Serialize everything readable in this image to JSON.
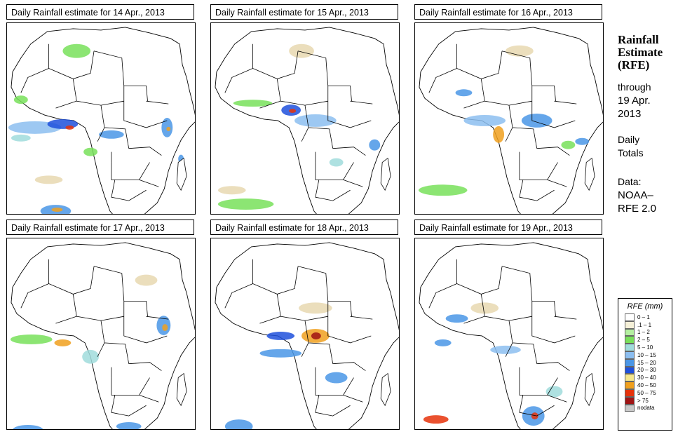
{
  "panels": [
    {
      "title": "Daily Rainfall estimate for  14 Apr., 2013"
    },
    {
      "title": "Daily Rainfall estimate for  15 Apr., 2013"
    },
    {
      "title": "Daily Rainfall estimate for  16 Apr., 2013"
    },
    {
      "title": "Daily Rainfall estimate for  17 Apr., 2013"
    },
    {
      "title": "Daily Rainfall estimate for  18 Apr., 2013"
    },
    {
      "title": "Daily Rainfall estimate for  19 Apr., 2013"
    }
  ],
  "sidebar": {
    "title_line1": "Rainfall",
    "title_line2": "Estimate",
    "title_line3": "(RFE)",
    "through": "through",
    "date_line1": "19 Apr.",
    "date_line2": "2013",
    "totals_line1": "Daily",
    "totals_line2": "Totals",
    "data_label": "Data:",
    "source_line1": "NOAA–",
    "source_line2": "RFE 2.0"
  },
  "legend": {
    "title": "RFE (mm)",
    "items": [
      {
        "label": "0 – 1",
        "color": "#ffffff"
      },
      {
        "label": ".1 – 1",
        "color": "#f5f0d8"
      },
      {
        "label": "1 – 2",
        "color": "#b4f0a0"
      },
      {
        "label": "2 – 5",
        "color": "#78e05a"
      },
      {
        "label": "5 – 10",
        "color": "#a0dcdc"
      },
      {
        "label": "10 – 15",
        "color": "#8cbef0"
      },
      {
        "label": "15 – 20",
        "color": "#4a96e6"
      },
      {
        "label": "20 – 30",
        "color": "#1e50dc"
      },
      {
        "label": "30 – 40",
        "color": "#f5e68c"
      },
      {
        "label": "40 – 50",
        "color": "#f0a01e"
      },
      {
        "label": "50 – 75",
        "color": "#e6320a"
      },
      {
        "label": "> 75",
        "color": "#a01414"
      },
      {
        "label": "nodata",
        "color": "#c8c8c8"
      }
    ]
  },
  "map_colors": {
    "tan": "#e8d8b0",
    "light_green": "#b4f0a0",
    "green": "#78e05a",
    "cyan": "#a0dcdc",
    "light_blue": "#8cbef0",
    "blue": "#4a96e6",
    "dark_blue": "#1e50dc",
    "orange": "#f0a01e",
    "red": "#e6320a",
    "dark_red": "#a01414"
  }
}
